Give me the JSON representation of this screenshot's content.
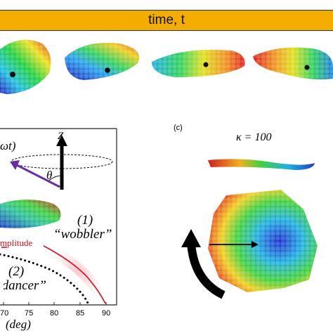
{
  "banner": {
    "label": "time, t"
  },
  "panel_b": {
    "omega_label": "ωt)",
    "z_label": "Z",
    "theta_label": "θ",
    "mode1_number": "(1)",
    "mode1_name": "“wobbler”",
    "mode2_number": "(2)",
    "mode2_name": "“dancer”",
    "curve_label": "mplitude",
    "x_axis_label": "(deg)",
    "x_ticks": [
      "70",
      "75",
      "80",
      "85",
      "90"
    ]
  },
  "panel_c": {
    "tag": "(c)",
    "kappa_label": "κ = 100"
  },
  "colors": {
    "banner": "#f2ad00",
    "arrow_purple": "#6a2ca0",
    "amplitude_red": "#d01020",
    "rotation_arrow": "#000000"
  }
}
